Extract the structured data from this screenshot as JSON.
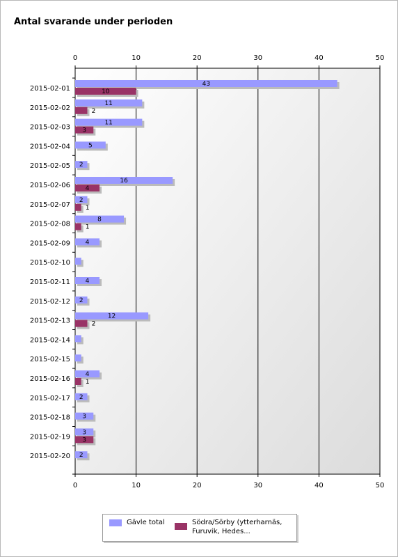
{
  "chart_data": {
    "type": "bar",
    "orientation": "horizontal",
    "title": "Antal svarande under perioden",
    "categories": [
      "2015-02-01",
      "2015-02-02",
      "2015-02-03",
      "2015-02-04",
      "2015-02-05",
      "2015-02-06",
      "2015-02-07",
      "2015-02-08",
      "2015-02-09",
      "2015-02-10",
      "2015-02-11",
      "2015-02-12",
      "2015-02-13",
      "2015-02-14",
      "2015-02-15",
      "2015-02-16",
      "2015-02-17",
      "2015-02-18",
      "2015-02-19",
      "2015-02-20"
    ],
    "series": [
      {
        "name": "Gävle total",
        "color": "#9999ff",
        "values": [
          43,
          11,
          11,
          5,
          2,
          16,
          2,
          8,
          4,
          1,
          4,
          2,
          12,
          1,
          1,
          4,
          2,
          3,
          3,
          2
        ],
        "labels": [
          "43",
          "11",
          "11",
          "5",
          "2",
          "16",
          "2",
          "8",
          "4",
          "",
          "4",
          "2",
          "12",
          "",
          "",
          "4",
          "2",
          "3",
          "3",
          "2"
        ]
      },
      {
        "name": "Södra/Sörby (ytterharnäs, Furuvik, Hedes...",
        "color": "#993366",
        "values": [
          10,
          2,
          3,
          null,
          null,
          4,
          1,
          1,
          null,
          null,
          null,
          null,
          2,
          null,
          null,
          1,
          null,
          null,
          3,
          null
        ],
        "labels": [
          "10",
          "2",
          "3",
          "",
          "",
          "4",
          "1",
          "1",
          "",
          "",
          "",
          "",
          "2",
          "",
          "",
          "1",
          "",
          "",
          "3",
          ""
        ]
      }
    ],
    "xlim": [
      0,
      50
    ],
    "ticks": [
      0,
      10,
      20,
      30,
      40,
      50
    ],
    "tick_labels": [
      "0",
      "10",
      "20",
      "30",
      "40",
      "50"
    ],
    "grid": true,
    "legend": {
      "position": "bottom",
      "lines": [
        [
          "Gävle total"
        ],
        [
          "Södra/Sörby (ytterharnäs,",
          "Furuvik, Hedes..."
        ]
      ]
    }
  }
}
